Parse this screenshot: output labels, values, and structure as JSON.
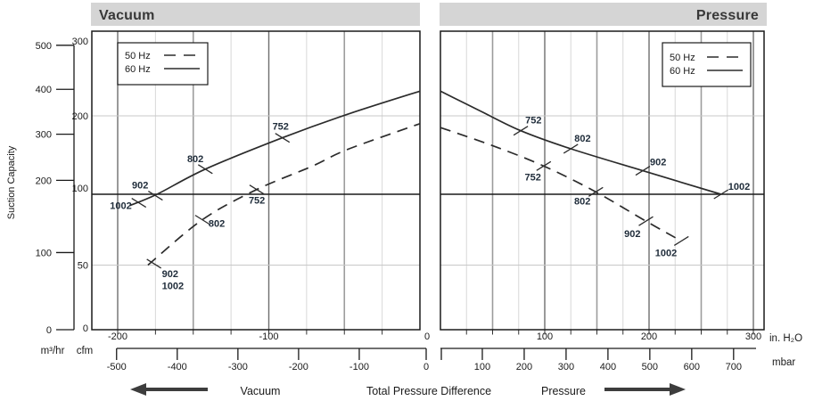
{
  "header": {
    "vacuum_title": "Vacuum",
    "pressure_title": "Pressure"
  },
  "legend": {
    "hz50": "50 Hz",
    "hz60": "60 Hz"
  },
  "axes": {
    "ylabel": "Suction Capacity",
    "m3hr_label": "m³/hr",
    "cfm_label": "cfm",
    "inh2o_unit": "in. H₂O",
    "mbar_unit": "mbar"
  },
  "footer": {
    "vacuum_label": "Vacuum",
    "tpd_label": "Total Pressure Difference",
    "pressure_label": "Pressure"
  },
  "colors": {
    "header_band_bg": "#d5d5d5",
    "curve_color": "#2b2b2b",
    "curve_label_color": "#1f2c3a",
    "grid_100s": "#6e6e6e",
    "grid_50s": "#9c9c9c",
    "grid_minor": "#d8d8d8",
    "grid_h_light": "#c8c8c8",
    "grid_h_dark": "#1a1a1a"
  },
  "chart_data": {
    "type": "line",
    "title": "",
    "ylabel": "Suction Capacity",
    "xlabel": "Total Pressure Difference",
    "grid": true,
    "legend_position": "top-inside",
    "y_axis": {
      "primary_unit": "m³/hr",
      "secondary_unit": "cfm",
      "m3hr_ticks": [
        0,
        100,
        200,
        300,
        400,
        500
      ],
      "cfm_ticks": [
        0,
        50,
        100,
        200,
        300
      ],
      "cfm_per_m3hr": 0.5886,
      "note": "cfm tick marks 0/50/100/200/300 are evenly spaced (non-linear scale); heavy horizontal line at 100 cfm, light lines at 50 and 200 cfm"
    },
    "panels": [
      {
        "id": "vacuum",
        "title": "Vacuum",
        "x_axis": {
          "unit": "in. H₂O",
          "secondary_unit": "mbar",
          "range_inh2o": [
            -217,
            0
          ],
          "labeled_ticks_inh2o": [
            -200,
            -100,
            0
          ],
          "grid_step_inh2o": 25,
          "mbar_ticks": [
            -500,
            -400,
            -300,
            -200,
            -100,
            0
          ]
        },
        "series": [
          {
            "name": "60 Hz",
            "style": "solid",
            "points_inh2o_cfm": [
              [
                -192,
                92
              ],
              [
                -174,
                100
              ],
              [
                -142,
                132
              ],
              [
                -91,
                172
              ],
              [
                -48,
                202
              ],
              [
                0,
                233
              ]
            ]
          },
          {
            "name": "50 Hz",
            "style": "dashed",
            "points_inh2o_cfm": [
              [
                -180,
                50
              ],
              [
                -144,
                82
              ],
              [
                -108,
                106
              ],
              [
                -71,
                136
              ],
              [
                -48,
                157
              ],
              [
                0,
                190
              ]
            ]
          }
        ],
        "model_ticks": [
          {
            "series": "60 Hz",
            "labels": [
              "1002"
            ],
            "x_inh2o": -186,
            "cfm": 94
          },
          {
            "series": "60 Hz",
            "labels": [
              "902"
            ],
            "x_inh2o": -175,
            "cfm": 99
          },
          {
            "series": "60 Hz",
            "labels": [
              "802"
            ],
            "x_inh2o": -142,
            "cfm": 132
          },
          {
            "series": "60 Hz",
            "labels": [
              "752"
            ],
            "x_inh2o": -91,
            "cfm": 172
          },
          {
            "series": "50 Hz",
            "labels": [
              "902",
              "1002"
            ],
            "x_inh2o": -176,
            "cfm": 51
          },
          {
            "series": "50 Hz",
            "labels": [
              "802"
            ],
            "x_inh2o": -144,
            "cfm": 82
          },
          {
            "series": "50 Hz",
            "labels": [
              "752"
            ],
            "x_inh2o": -108,
            "cfm": 106
          }
        ]
      },
      {
        "id": "pressure",
        "title": "Pressure",
        "x_axis": {
          "unit": "in. H₂O",
          "secondary_unit": "mbar",
          "range_inh2o": [
            0,
            310
          ],
          "labeled_ticks_inh2o": [
            0,
            100,
            200,
            300
          ],
          "grid_step_inh2o": 25,
          "mbar_ticks": [
            0,
            100,
            200,
            300,
            400,
            500,
            600,
            700
          ]
        },
        "series": [
          {
            "name": "60 Hz",
            "style": "solid",
            "points_inh2o_cfm": [
              [
                0,
                233
              ],
              [
                39,
                206
              ],
              [
                77,
                181
              ],
              [
                125,
                158
              ],
              [
                194,
                130
              ],
              [
                269,
                100
              ]
            ]
          },
          {
            "name": "50 Hz",
            "style": "dashed",
            "points_inh2o_cfm": [
              [
                0,
                185
              ],
              [
                48,
                163
              ],
              [
                99,
                136
              ],
              [
                149,
                103
              ],
              [
                197,
                81
              ],
              [
                231,
                67
              ]
            ]
          }
        ],
        "model_ticks": [
          {
            "series": "60 Hz",
            "labels": [
              "752"
            ],
            "x_inh2o": 77,
            "cfm": 181
          },
          {
            "series": "60 Hz",
            "labels": [
              "802"
            ],
            "x_inh2o": 125,
            "cfm": 158
          },
          {
            "series": "60 Hz",
            "labels": [
              "902"
            ],
            "x_inh2o": 194,
            "cfm": 130
          },
          {
            "series": "60 Hz",
            "labels": [
              "1002"
            ],
            "x_inh2o": 269,
            "cfm": 100
          },
          {
            "series": "50 Hz",
            "labels": [
              "752"
            ],
            "x_inh2o": 99,
            "cfm": 136
          },
          {
            "series": "50 Hz",
            "labels": [
              "802"
            ],
            "x_inh2o": 149,
            "cfm": 103
          },
          {
            "series": "50 Hz",
            "labels": [
              "902"
            ],
            "x_inh2o": 197,
            "cfm": 81
          },
          {
            "series": "50 Hz",
            "labels": [
              "1002"
            ],
            "x_inh2o": 231,
            "cfm": 67
          }
        ]
      }
    ],
    "unit_conversion": {
      "mbar_per_inh2o": 2.4908
    }
  }
}
